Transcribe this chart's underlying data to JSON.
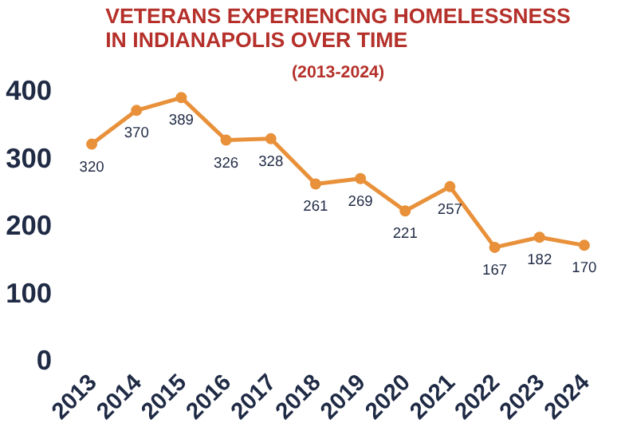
{
  "chart_data": {
    "type": "line",
    "title": "VETERANS EXPERIENCING HOMELESSNESS IN INDIANAPOLIS OVER TIME",
    "subtitle": "(2013-2024)",
    "categories": [
      "2013",
      "2014",
      "2015",
      "2016",
      "2017",
      "2018",
      "2019",
      "2020",
      "2021",
      "2022",
      "2023",
      "2024"
    ],
    "series": [
      {
        "color": "#e8913a",
        "values": [
          320,
          370,
          389,
          326,
          328,
          261,
          269,
          221,
          257,
          167,
          182,
          170
        ]
      }
    ],
    "ylim": [
      0,
      400
    ],
    "yticks": [
      0,
      100,
      200,
      300,
      400
    ],
    "grid": false,
    "marker": "circle",
    "line_style": "solid",
    "data_labels": true
  }
}
